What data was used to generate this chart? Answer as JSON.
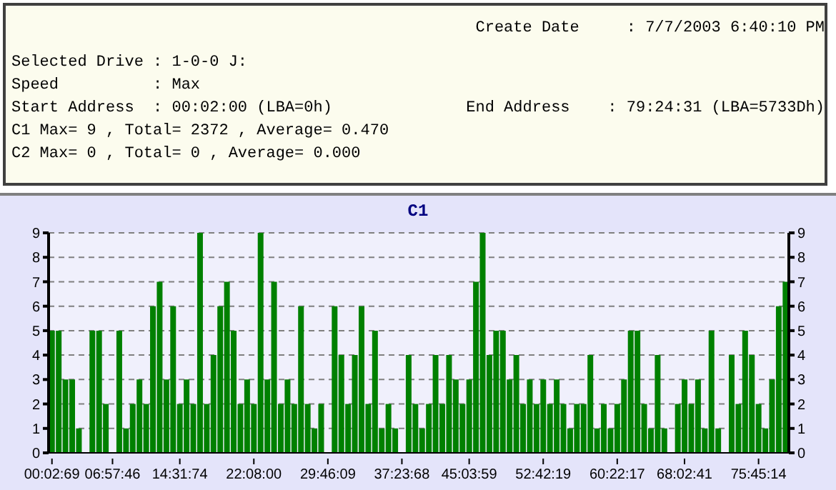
{
  "chart_data": {
    "type": "bar",
    "title": "C1",
    "annotations": [
      "Create Date     : 7/7/2003 6:40:10 PM",
      "Selected Drive : 1-0-0 J:",
      "Speed          : Max",
      "Start Address  : 00:02:00 (LBA=0h)",
      "End Address    : 79:24:31 (LBA=5733Dh)",
      "C1 Max= 9 , Total= 2372 , Average= 0.470",
      "C2 Max= 0 , Total= 0 , Average= 0.000"
    ],
    "categories": [
      "00:02:69",
      null,
      null,
      null,
      null,
      null,
      null,
      null,
      null,
      "06:57:46",
      null,
      null,
      null,
      null,
      null,
      null,
      null,
      null,
      null,
      "14:31:74",
      null,
      null,
      null,
      null,
      null,
      null,
      null,
      null,
      null,
      null,
      "22:08:00",
      null,
      null,
      null,
      null,
      null,
      null,
      null,
      null,
      null,
      null,
      "29:46:09",
      null,
      null,
      null,
      null,
      null,
      null,
      null,
      null,
      null,
      null,
      "37:23:68",
      null,
      null,
      null,
      null,
      null,
      null,
      null,
      null,
      null,
      "45:03:59",
      null,
      null,
      null,
      null,
      null,
      null,
      null,
      null,
      null,
      null,
      "52:42:19",
      null,
      null,
      null,
      null,
      null,
      null,
      null,
      null,
      null,
      null,
      "60:22:17",
      null,
      null,
      null,
      null,
      null,
      null,
      null,
      null,
      null,
      "68:02:41",
      null,
      null,
      null,
      null,
      null,
      null,
      null,
      null,
      null,
      null,
      "75:45:14",
      null,
      null,
      null,
      null
    ],
    "values": [
      5,
      5,
      3,
      3,
      1,
      0,
      5,
      5,
      2,
      0,
      5,
      1,
      2,
      3,
      2,
      6,
      7,
      3,
      6,
      2,
      3,
      2,
      9,
      2,
      4,
      6,
      7,
      5,
      2,
      3,
      2,
      9,
      3,
      7,
      2,
      3,
      2,
      6,
      2,
      1,
      2,
      0,
      6,
      4,
      2,
      4,
      6,
      2,
      5,
      1,
      2,
      1,
      0,
      4,
      2,
      1,
      2,
      4,
      2,
      4,
      3,
      2,
      3,
      7,
      9,
      4,
      5,
      5,
      3,
      4,
      2,
      3,
      2,
      3,
      2,
      3,
      2,
      1,
      2,
      2,
      4,
      1,
      2,
      1,
      2,
      3,
      5,
      5,
      2,
      1,
      4,
      1,
      0,
      2,
      3,
      2,
      3,
      1,
      5,
      1,
      0,
      4,
      2,
      5,
      4,
      2,
      1,
      3,
      6,
      7
    ],
    "color": "#008000",
    "ylim": [
      0,
      9
    ],
    "yticks": [
      0,
      1,
      2,
      3,
      4,
      5,
      6,
      7,
      8,
      9
    ],
    "y2lim": [
      0,
      9
    ],
    "y2ticks": [
      0,
      1,
      2,
      3,
      4,
      5,
      6,
      7,
      8,
      9
    ],
    "grid": "y"
  }
}
